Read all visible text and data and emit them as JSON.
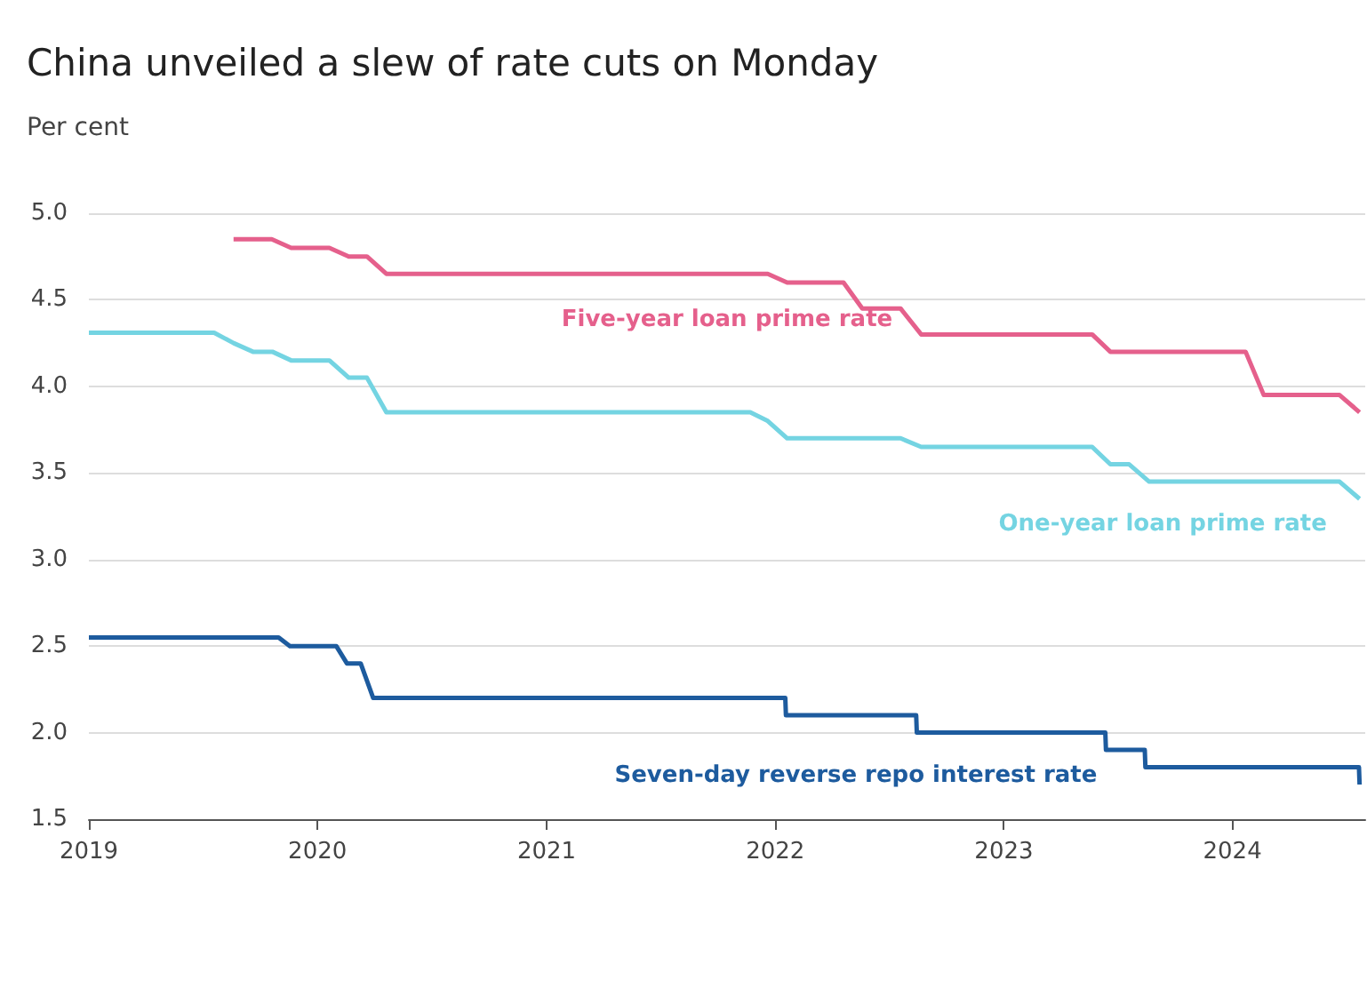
{
  "chart_data": {
    "type": "line",
    "title": "China unveiled a slew of rate cuts on Monday",
    "ylabel": "Per cent",
    "series": [
      {
        "name": "Five-year loan prime rate",
        "color": "#e5608c",
        "x": [
          "2019-08-20",
          "2019-10-20",
          "2019-11-20",
          "2020-01-20",
          "2020-02-20",
          "2020-03-20",
          "2020-04-20",
          "2021-12-20",
          "2022-01-20",
          "2022-04-20",
          "2022-05-20",
          "2022-07-20",
          "2022-08-22",
          "2023-05-22",
          "2023-06-20",
          "2024-01-22",
          "2024-02-20",
          "2024-06-20",
          "2024-07-22"
        ],
        "values": [
          4.85,
          4.85,
          4.8,
          4.8,
          4.75,
          4.75,
          4.65,
          4.65,
          4.6,
          4.6,
          4.45,
          4.45,
          4.3,
          4.3,
          4.2,
          4.2,
          3.95,
          3.95,
          3.85
        ]
      },
      {
        "name": "One-year loan prime rate",
        "color": "#74d4e2",
        "x": [
          "2019-01-01",
          "2019-07-20",
          "2019-08-20",
          "2019-09-20",
          "2019-10-21",
          "2019-11-20",
          "2020-01-20",
          "2020-02-20",
          "2020-03-20",
          "2020-04-20",
          "2021-11-22",
          "2021-12-20",
          "2022-01-20",
          "2022-07-20",
          "2022-08-22",
          "2023-05-22",
          "2023-06-20",
          "2023-07-20",
          "2023-08-21",
          "2024-06-20",
          "2024-07-22"
        ],
        "values": [
          4.31,
          4.31,
          4.25,
          4.2,
          4.2,
          4.15,
          4.15,
          4.05,
          4.05,
          3.85,
          3.85,
          3.8,
          3.7,
          3.7,
          3.65,
          3.65,
          3.55,
          3.55,
          3.45,
          3.45,
          3.35
        ]
      },
      {
        "name": "Seven-day reverse repo interest rate",
        "color": "#1d5b9e",
        "x": [
          "2019-01-01",
          "2019-10-31",
          "2019-11-18",
          "2020-01-31",
          "2020-02-17",
          "2020-03-10",
          "2020-03-30",
          "2022-01-17",
          "2022-01-18",
          "2022-08-14",
          "2022-08-15",
          "2023-06-12",
          "2023-06-13",
          "2023-08-14",
          "2023-08-15",
          "2024-07-21",
          "2024-07-22"
        ],
        "values": [
          2.55,
          2.55,
          2.5,
          2.5,
          2.4,
          2.4,
          2.2,
          2.2,
          2.1,
          2.1,
          2.0,
          2.0,
          1.9,
          1.9,
          1.8,
          1.8,
          1.7
        ]
      }
    ],
    "xlim": [
      "2019-01-01",
      "2024-07-31"
    ],
    "xticks": [
      "2019",
      "2020",
      "2021",
      "2022",
      "2023",
      "2024"
    ],
    "ylim": [
      1.5,
      5.0
    ],
    "yticks": [
      {
        "value": 1.5,
        "label": "1.5"
      },
      {
        "value": 2,
        "label": "2.0"
      },
      {
        "value": 2.5,
        "label": "2.5"
      },
      {
        "value": 3,
        "label": "3.0"
      },
      {
        "value": 3.5,
        "label": "3.5"
      },
      {
        "value": 4,
        "label": "4.0"
      },
      {
        "value": 4.5,
        "label": "4.5"
      },
      {
        "value": 5,
        "label": "5.0"
      }
    ],
    "grid": "y",
    "legend": false,
    "marker": "none",
    "line_style": "solid"
  }
}
